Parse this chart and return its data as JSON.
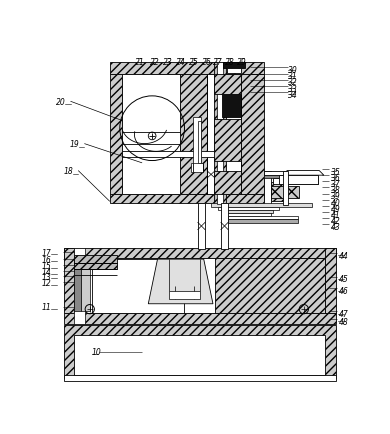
{
  "bg_color": "#ffffff",
  "lc": "#000000",
  "hc": "#d8d8d8",
  "fig_width": 3.9,
  "fig_height": 4.35,
  "dpi": 100
}
